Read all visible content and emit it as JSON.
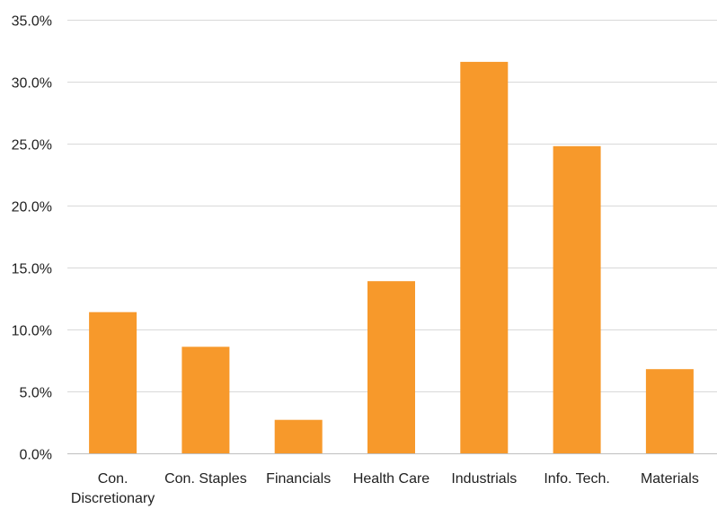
{
  "chart_data": {
    "type": "bar",
    "title": "",
    "xlabel": "",
    "ylabel": "",
    "categories": [
      "Con. Discretionary",
      "Con. Staples",
      "Financials",
      "Health Care",
      "Industrials",
      "Info. Tech.",
      "Materials"
    ],
    "category_label_lines": [
      [
        "Con.",
        "Discretionary"
      ],
      [
        "Con. Staples"
      ],
      [
        "Financials"
      ],
      [
        "Health Care"
      ],
      [
        "Industrials"
      ],
      [
        "Info. Tech."
      ],
      [
        "Materials"
      ]
    ],
    "values": [
      11.4,
      8.6,
      2.7,
      13.9,
      31.6,
      24.8,
      6.8
    ],
    "unit": "%",
    "ylim": [
      0,
      35
    ],
    "yticks": [
      0,
      5,
      10,
      15,
      20,
      25,
      30,
      35
    ],
    "ytick_labels": [
      "0.0%",
      "5.0%",
      "10.0%",
      "15.0%",
      "20.0%",
      "25.0%",
      "30.0%",
      "35.0%"
    ],
    "grid": true,
    "legend": "none",
    "colors": {
      "bar": "#F7992B",
      "grid": "#D9D9D9",
      "text": "#222222"
    }
  }
}
